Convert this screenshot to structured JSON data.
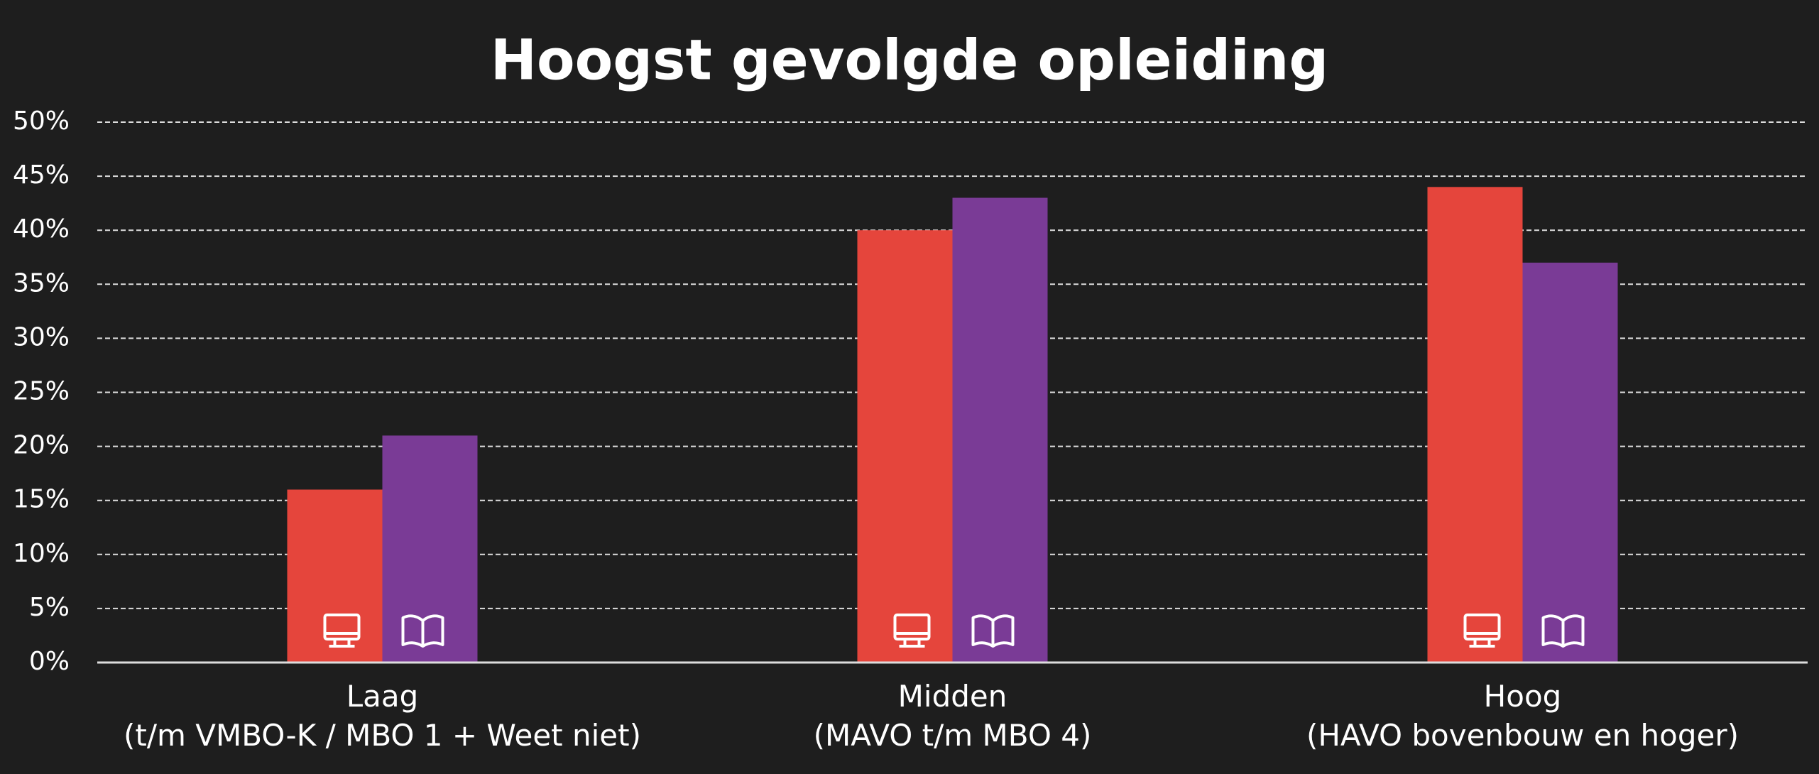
{
  "chart_data": {
    "type": "bar",
    "title": "Hoogst gevolgde opleiding",
    "categories": [
      "Laag\n(t/m VMBO-K / MBO 1 + Weet niet)",
      "Midden\n(MAVO t/m MBO 4)",
      "Hoog\n(HAVO bovenbouw en hoger)"
    ],
    "series": [
      {
        "color": "#e5453c",
        "values": [
          16,
          40,
          44
        ]
      },
      {
        "color": "#7a3b96",
        "values": [
          21,
          43,
          37
        ]
      }
    ],
    "ylim": [
      0,
      50
    ],
    "yticks": [
      {
        "value": 0,
        "label": "0%"
      },
      {
        "value": 5,
        "label": "5%"
      },
      {
        "value": 10,
        "label": "10%"
      },
      {
        "value": 15,
        "label": "15%"
      },
      {
        "value": 20,
        "label": "20%"
      },
      {
        "value": 25,
        "label": "25%"
      },
      {
        "value": 30,
        "label": "30%"
      },
      {
        "value": 35,
        "label": "35%"
      },
      {
        "value": 40,
        "label": "40%"
      },
      {
        "value": 45,
        "label": "45%"
      },
      {
        "value": 50,
        "label": "50%"
      }
    ],
    "grid": true
  }
}
